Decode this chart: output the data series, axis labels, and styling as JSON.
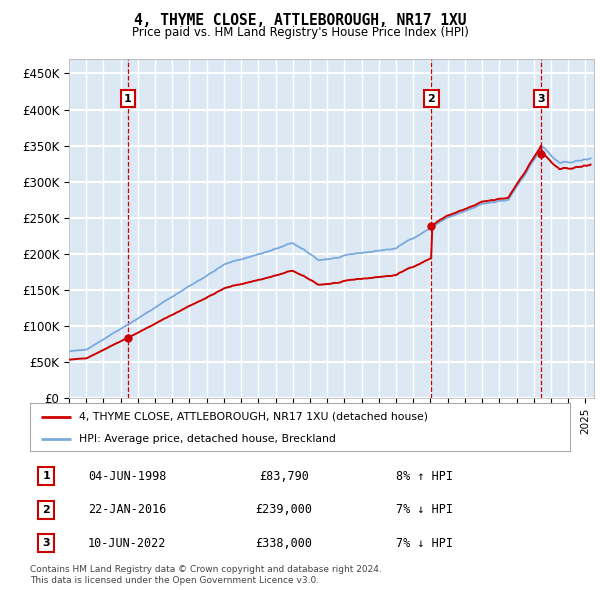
{
  "title": "4, THYME CLOSE, ATTLEBOROUGH, NR17 1XU",
  "subtitle": "Price paid vs. HM Land Registry's House Price Index (HPI)",
  "xlim_start": 1995.0,
  "xlim_end": 2025.5,
  "ylim": [
    0,
    470000
  ],
  "background_color": "#dce9f5",
  "grid_color": "#ffffff",
  "red_line_color": "#cc0000",
  "blue_line_color": "#7aaadd",
  "purchases": [
    {
      "label": "1",
      "date": "04-JUN-1998",
      "year": 1998.42,
      "price": 83790,
      "hpi_pct": "8% ↑ HPI"
    },
    {
      "label": "2",
      "date": "22-JAN-2016",
      "year": 2016.05,
      "price": 239000,
      "hpi_pct": "7% ↓ HPI"
    },
    {
      "label": "3",
      "date": "10-JUN-2022",
      "year": 2022.44,
      "price": 338000,
      "hpi_pct": "7% ↓ HPI"
    }
  ],
  "legend_line1": "4, THYME CLOSE, ATTLEBOROUGH, NR17 1XU (detached house)",
  "legend_line2": "HPI: Average price, detached house, Breckland",
  "footer": "Contains HM Land Registry data © Crown copyright and database right 2024.\nThis data is licensed under the Open Government Licence v3.0.",
  "yticks": [
    0,
    50000,
    100000,
    150000,
    200000,
    250000,
    300000,
    350000,
    400000,
    450000
  ],
  "ytick_labels": [
    "£0",
    "£50K",
    "£100K",
    "£150K",
    "£200K",
    "£250K",
    "£300K",
    "£350K",
    "£400K",
    "£450K"
  ]
}
